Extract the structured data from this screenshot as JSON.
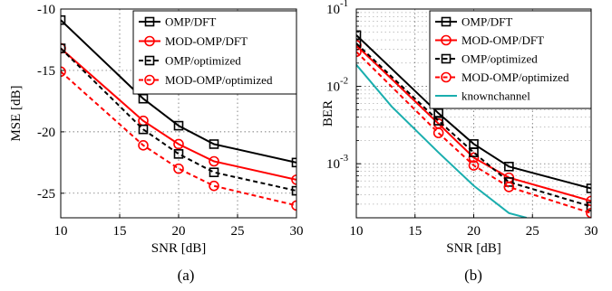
{
  "chart_data": [
    {
      "panel": "(a)",
      "type": "line",
      "xlabel": "SNR [dB]",
      "ylabel": "MSE [dB]",
      "xlim": [
        10,
        30
      ],
      "ylim": [
        -27,
        -10
      ],
      "xticks": [
        10,
        15,
        20,
        25,
        30
      ],
      "xtick_labels": [
        "10",
        "15",
        "20",
        "25",
        "30"
      ],
      "yticks": [
        -25,
        -20,
        -15,
        -10
      ],
      "ytick_labels": [
        "-25",
        "-20",
        "-15",
        "-10"
      ],
      "grid": true,
      "legend_position": "top-right",
      "x": [
        10,
        17,
        20,
        23,
        30
      ],
      "series": [
        {
          "name": "OMP/DFT",
          "color": "#000000",
          "dash": "solid",
          "marker": "square",
          "values": [
            -10.9,
            -17.3,
            -19.5,
            -21.0,
            -22.5
          ]
        },
        {
          "name": "MOD-OMP/DFT",
          "color": "#ff0000",
          "dash": "solid",
          "marker": "circle",
          "values": [
            -13.2,
            -19.1,
            -21.0,
            -22.4,
            -23.9
          ]
        },
        {
          "name": "OMP/optimized",
          "color": "#000000",
          "dash": "dashed",
          "marker": "square",
          "values": [
            -13.2,
            -19.8,
            -21.8,
            -23.3,
            -24.8
          ]
        },
        {
          "name": "MOD-OMP/optimized",
          "color": "#ff0000",
          "dash": "dashed",
          "marker": "circle",
          "values": [
            -15.1,
            -21.1,
            -23.0,
            -24.4,
            -26.0
          ]
        }
      ]
    },
    {
      "panel": "(b)",
      "type": "line",
      "xlabel": "SNR [dB]",
      "ylabel": "BER",
      "yscale": "log",
      "xlim": [
        10,
        30
      ],
      "ylim": [
        0.0002,
        0.1
      ],
      "xticks": [
        10,
        15,
        20,
        25,
        30
      ],
      "xtick_labels": [
        "10",
        "15",
        "20",
        "25",
        "30"
      ],
      "yticks": [
        0.001,
        0.01,
        0.1
      ],
      "ytick_bases": [
        "10",
        "10",
        "10"
      ],
      "ytick_exponents": [
        "-3",
        "-2",
        "-1"
      ],
      "grid": true,
      "legend_position": "top-right",
      "series": [
        {
          "name": "OMP/DFT",
          "color": "#000000",
          "dash": "solid",
          "marker": "square",
          "x": [
            10,
            17,
            20,
            23,
            30
          ],
          "values": [
            0.046,
            0.0045,
            0.0018,
            0.00092,
            0.00048
          ]
        },
        {
          "name": "MOD-OMP/DFT",
          "color": "#ff0000",
          "dash": "solid",
          "marker": "circle",
          "x": [
            10,
            17,
            20,
            23,
            30
          ],
          "values": [
            0.034,
            0.0033,
            0.0012,
            0.00066,
            0.00033
          ]
        },
        {
          "name": "OMP/optimized",
          "color": "#000000",
          "dash": "dashed",
          "marker": "square",
          "x": [
            10,
            17,
            20,
            23,
            30
          ],
          "values": [
            0.036,
            0.0036,
            0.0014,
            0.00058,
            0.00028
          ]
        },
        {
          "name": "MOD-OMP/optimized",
          "color": "#ff0000",
          "dash": "dashed",
          "marker": "circle",
          "x": [
            10,
            17,
            20,
            23,
            30
          ],
          "values": [
            0.028,
            0.0025,
            0.00095,
            0.0005,
            0.00023
          ]
        },
        {
          "name": "knownchannel",
          "color": "#1aaeae",
          "dash": "solid",
          "marker": "none",
          "x": [
            10,
            13,
            17,
            20,
            23,
            24.5
          ],
          "values": [
            0.019,
            0.0055,
            0.0014,
            0.00052,
            0.00023,
            0.0002
          ]
        }
      ]
    }
  ]
}
